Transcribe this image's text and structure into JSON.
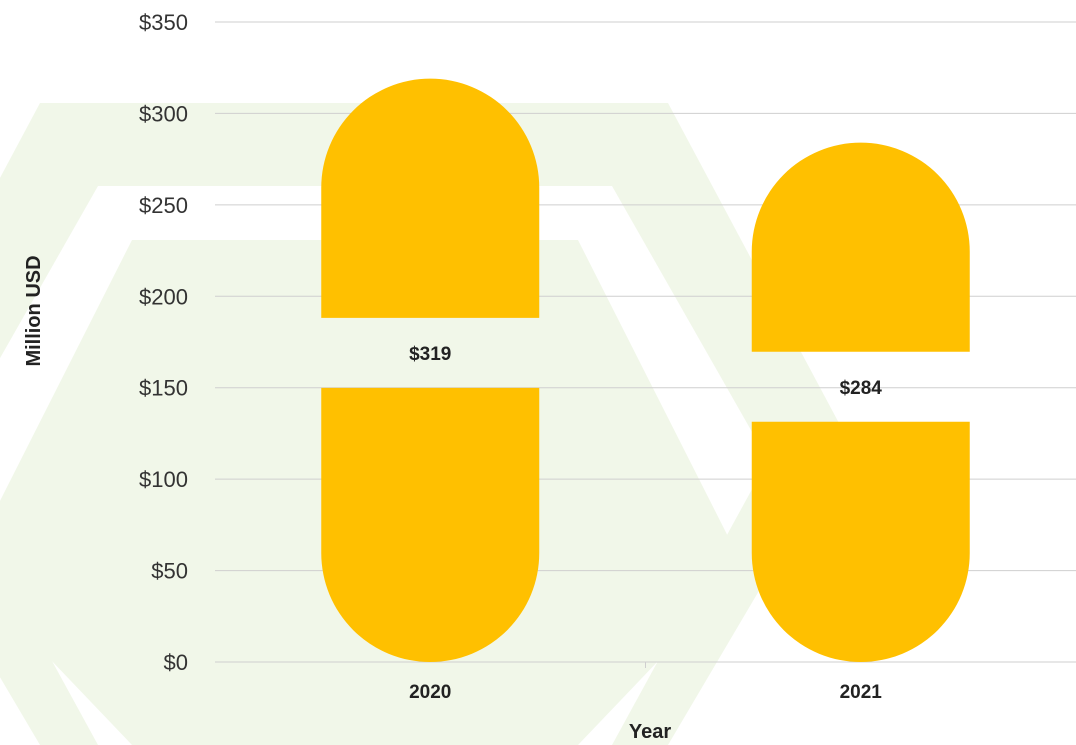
{
  "chart_data": {
    "type": "bar",
    "categories": [
      "2020",
      "2021"
    ],
    "values": [
      319,
      284
    ],
    "value_labels": [
      "$319",
      "$284"
    ],
    "title": "",
    "xlabel": "Year",
    "ylabel": "Million USD",
    "ylim": [
      0,
      350
    ],
    "y_ticks": [
      0,
      50,
      100,
      150,
      200,
      250,
      300,
      350
    ],
    "y_tick_labels": [
      "$0",
      "$50",
      "$100",
      "$150",
      "$200",
      "$250",
      "$300",
      "$350"
    ],
    "grid": true,
    "legend": "none",
    "bar_style": "capsule split by value label",
    "colors": {
      "bar": "#ffc000",
      "gridline": "#cfcfcf",
      "background_shape": "#f1f7e9",
      "text": "#222222"
    }
  }
}
